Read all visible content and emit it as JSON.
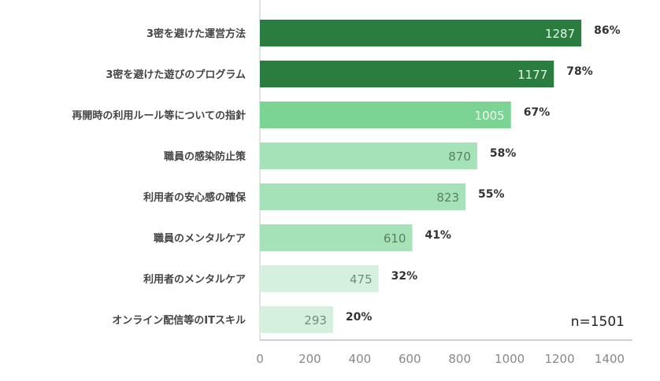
{
  "chart_data": {
    "type": "bar",
    "orientation": "horizontal",
    "categories": [
      "3密を避けた運営方法",
      "3密を避けた遊びのプログラム",
      "再開時の利用ルール等についての指針",
      "職員の感染防止策",
      "利用者の安心感の確保",
      "職員のメンタルケア",
      "利用者のメンタルケア",
      "オンライン配信等のITスキル"
    ],
    "values": [
      1287,
      1177,
      1005,
      870,
      823,
      610,
      475,
      293
    ],
    "value_labels": [
      "1287",
      "1177",
      "1005",
      "870",
      "823",
      "610",
      "475",
      "293"
    ],
    "percent_labels": [
      "86%",
      "78%",
      "67%",
      "58%",
      "55%",
      "41%",
      "32%",
      "20%"
    ],
    "bar_colors": [
      "#2a7d3f",
      "#2a7d3f",
      "#7bd394",
      "#a6e2b8",
      "#a6e2b8",
      "#a6e2b8",
      "#d5f0de",
      "#d5f0de"
    ],
    "value_label_colors": [
      "#e8f5ec",
      "#e8f5ec",
      "#f2fbf4",
      "#5b7d66",
      "#5b7d66",
      "#5b7d66",
      "#6f8f78",
      "#6f8f78"
    ],
    "xlim": [
      0,
      1400
    ],
    "xticks": [
      "0",
      "200",
      "400",
      "600",
      "800",
      "1000",
      "1200",
      "1400"
    ],
    "annotation": "n=1501",
    "title": "",
    "xlabel": "",
    "ylabel": "",
    "grid": false
  }
}
